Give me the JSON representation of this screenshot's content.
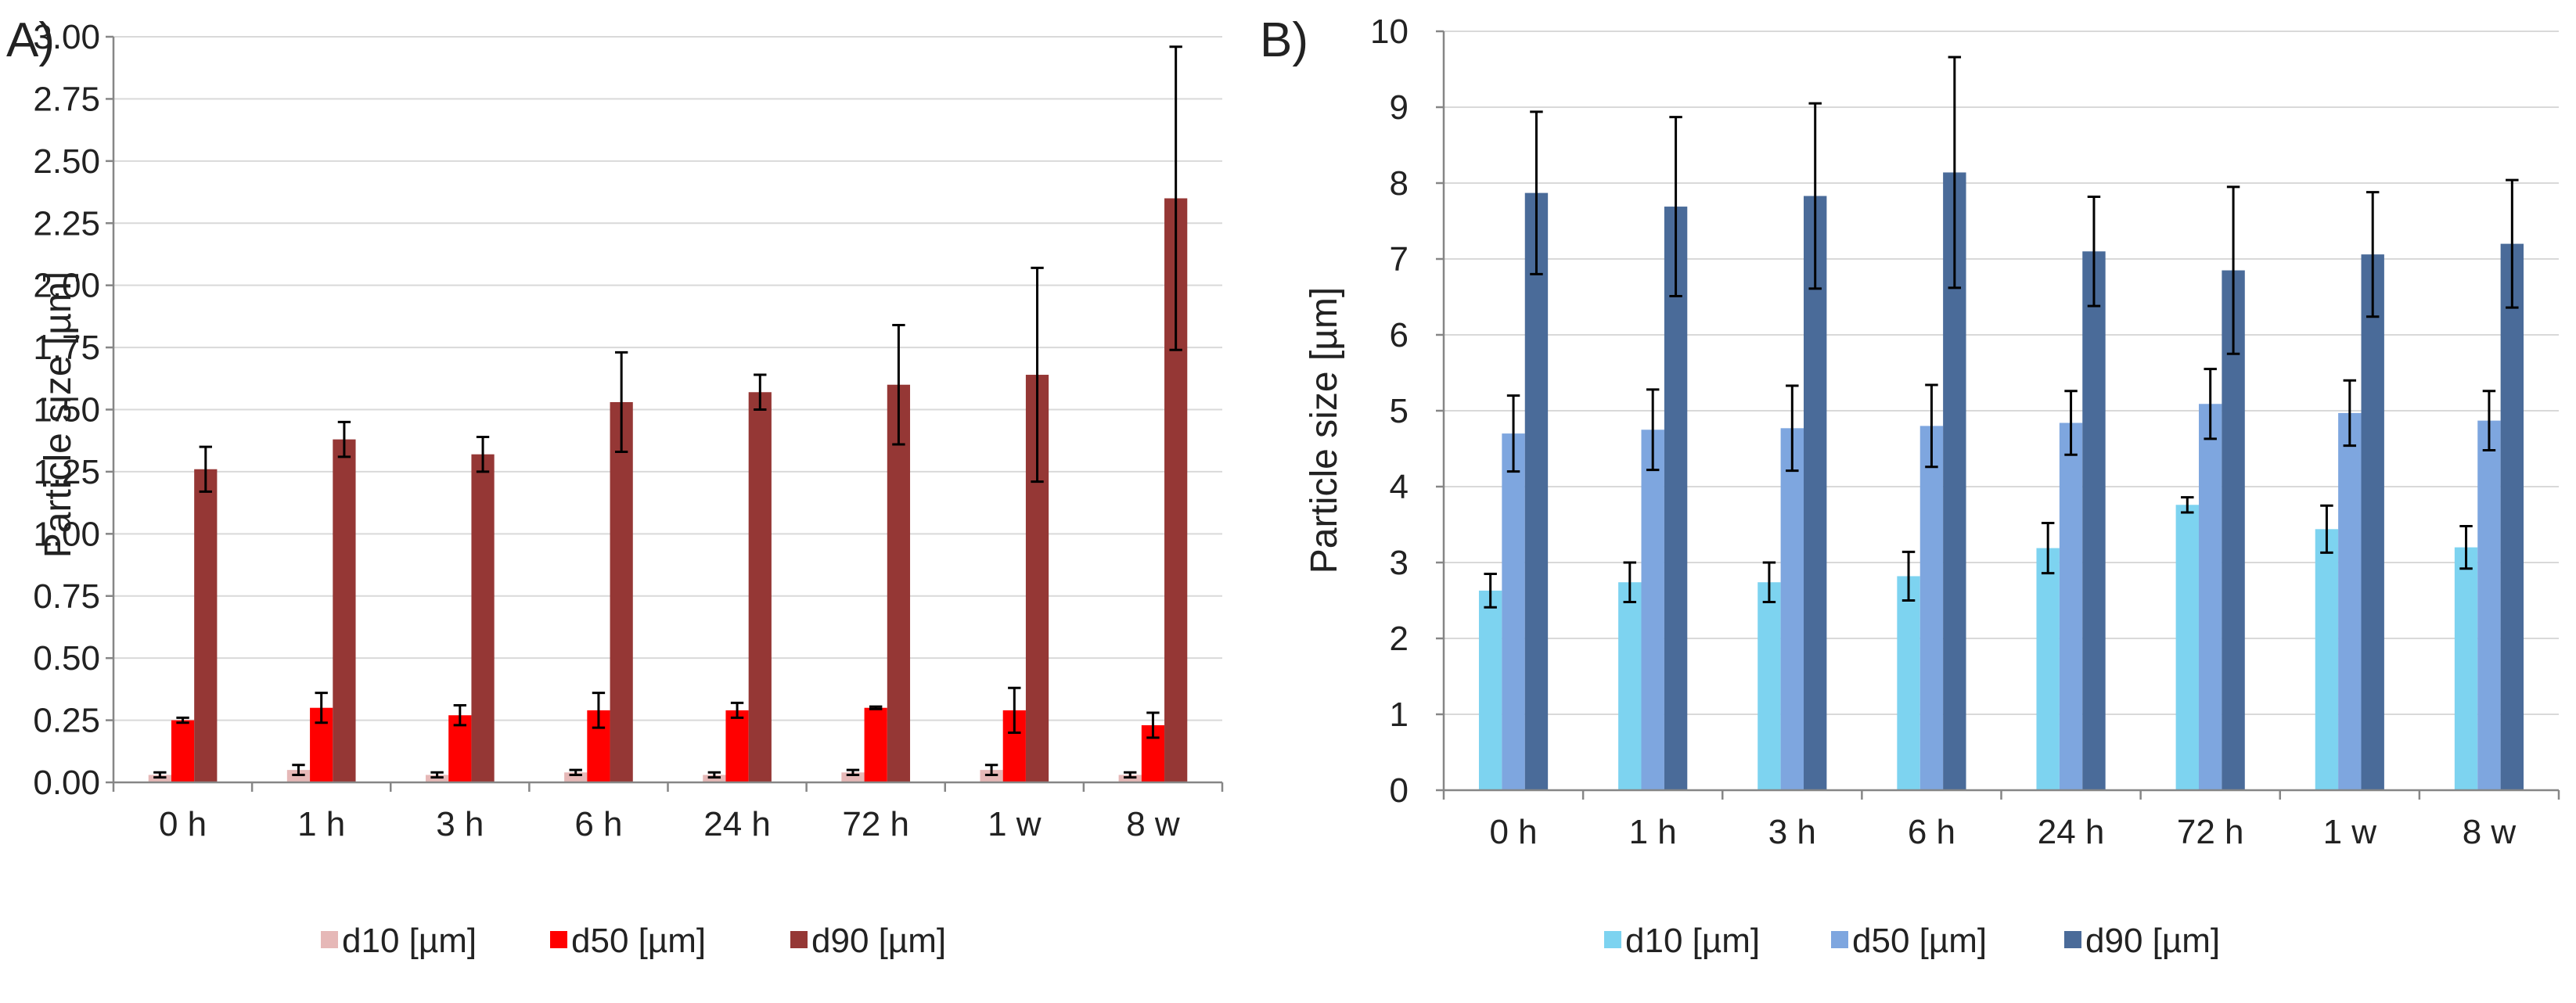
{
  "chart_data": [
    {
      "type": "bar",
      "panel_label": "A)",
      "title": "",
      "xlabel": "",
      "ylabel": "Particle size [µm]",
      "categories": [
        "0 h",
        "1 h",
        "3 h",
        "6 h",
        "24 h",
        "72 h",
        "1 w",
        "8 w"
      ],
      "ylim": [
        0,
        3.0
      ],
      "yticks": [
        "0.00",
        "0.25",
        "0.50",
        "0.75",
        "1.00",
        "1.25",
        "1.50",
        "1.75",
        "2.00",
        "2.25",
        "2.50",
        "2.75",
        "3.00"
      ],
      "grid": true,
      "legend_position": "bottom",
      "series": [
        {
          "name": "d10 [µm]",
          "color": "#e6b8b7",
          "values": [
            0.03,
            0.05,
            0.03,
            0.04,
            0.03,
            0.04,
            0.05,
            0.03
          ],
          "errors": [
            0.01,
            0.02,
            0.01,
            0.01,
            0.01,
            0.01,
            0.02,
            0.01
          ]
        },
        {
          "name": "d50 [µm]",
          "color": "#ff0000",
          "values": [
            0.25,
            0.3,
            0.27,
            0.29,
            0.29,
            0.3,
            0.29,
            0.23
          ],
          "errors": [
            0.01,
            0.06,
            0.04,
            0.07,
            0.03,
            0.005,
            0.09,
            0.05
          ]
        },
        {
          "name": "d90 [µm]",
          "color": "#953735",
          "values": [
            1.26,
            1.38,
            1.32,
            1.53,
            1.57,
            1.6,
            1.64,
            2.35
          ],
          "errors": [
            0.09,
            0.07,
            0.07,
            0.2,
            0.07,
            0.24,
            0.43,
            0.61
          ]
        }
      ]
    },
    {
      "type": "bar",
      "panel_label": "B)",
      "title": "",
      "xlabel": "",
      "ylabel": "Particle size [µm]",
      "categories": [
        "0 h",
        "1 h",
        "3 h",
        "6 h",
        "24 h",
        "72 h",
        "1 w",
        "8 w"
      ],
      "ylim": [
        0,
        10
      ],
      "yticks": [
        "0",
        "1",
        "2",
        "3",
        "4",
        "5",
        "6",
        "7",
        "8",
        "9",
        "10"
      ],
      "grid": true,
      "legend_position": "bottom",
      "series": [
        {
          "name": "d10 [µm]",
          "color": "#7dd3f0",
          "values": [
            2.63,
            2.74,
            2.74,
            2.82,
            3.19,
            3.76,
            3.44,
            3.2
          ],
          "errors": [
            0.22,
            0.26,
            0.26,
            0.32,
            0.33,
            0.1,
            0.31,
            0.28
          ]
        },
        {
          "name": "d50 [µm]",
          "color": "#7ea6df",
          "values": [
            4.7,
            4.75,
            4.77,
            4.8,
            4.84,
            5.09,
            4.97,
            4.87
          ],
          "errors": [
            0.5,
            0.53,
            0.56,
            0.54,
            0.42,
            0.46,
            0.43,
            0.39
          ]
        },
        {
          "name": "d90 [µm]",
          "color": "#4a6b99",
          "values": [
            7.87,
            7.69,
            7.83,
            8.14,
            7.1,
            6.85,
            7.06,
            7.2
          ],
          "errors": [
            1.07,
            1.18,
            1.22,
            1.52,
            0.72,
            1.1,
            0.82,
            0.84
          ]
        }
      ]
    }
  ]
}
